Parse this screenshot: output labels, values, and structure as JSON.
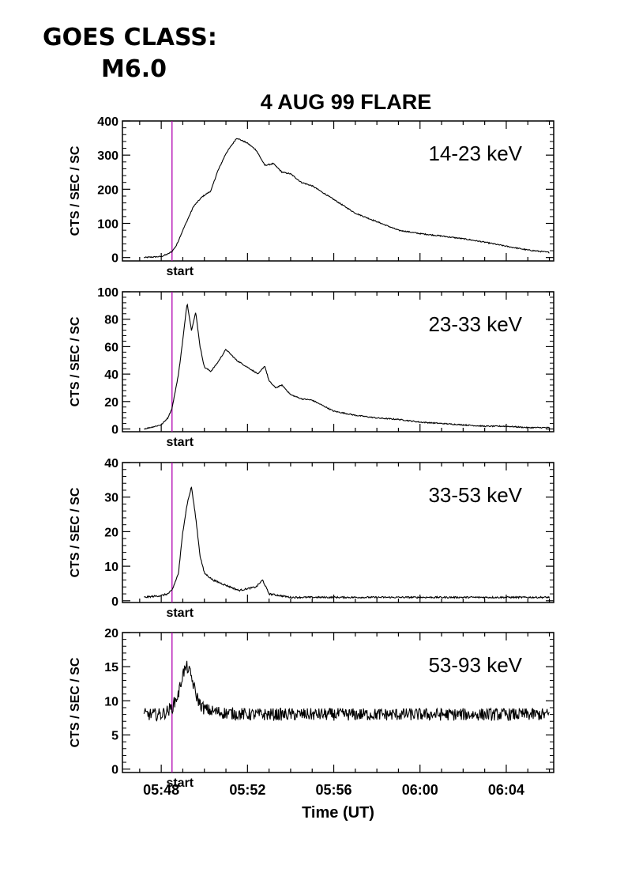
{
  "header": {
    "goes_class_label": "GOES CLASS:",
    "goes_class_value": "M6.0"
  },
  "chart_data": {
    "type": "line",
    "title": "4 AUG 99 FLARE",
    "xlabel": "Time (UT)",
    "ylabel": "CTS / SEC / SC",
    "x_unit": "minutes since 05:48 UT",
    "xlim": [
      -1.8,
      18.2
    ],
    "x_tick_labels": [
      "05:48",
      "05:52",
      "05:56",
      "06:00",
      "06:04"
    ],
    "x_tick_values": [
      0,
      4,
      8,
      12,
      16
    ],
    "marker": {
      "label": "start",
      "x": 0.5,
      "color": "#b000b0"
    },
    "line_color": "#000000",
    "grid": false,
    "panels": [
      {
        "band": "14-23 keV",
        "ylim": [
          -10,
          400
        ],
        "yticks": [
          0,
          100,
          200,
          300,
          400
        ],
        "x": [
          -0.8,
          0,
          0.3,
          0.5,
          0.7,
          1.0,
          1.5,
          1.9,
          2.3,
          2.6,
          3.0,
          3.5,
          4.0,
          4.4,
          4.8,
          5.2,
          5.6,
          6.0,
          6.5,
          7.0,
          7.5,
          8.0,
          8.5,
          9.0,
          10.0,
          11.0,
          12.0,
          13.0,
          14.0,
          15.0,
          16.0,
          17.0,
          18.0
        ],
        "values": [
          0,
          3,
          10,
          18,
          35,
          80,
          150,
          178,
          195,
          250,
          305,
          350,
          335,
          315,
          270,
          275,
          250,
          245,
          220,
          210,
          190,
          170,
          150,
          130,
          105,
          80,
          70,
          63,
          55,
          45,
          33,
          22,
          15
        ]
      },
      {
        "band": "23-33 keV",
        "ylim": [
          -2,
          100
        ],
        "yticks": [
          0,
          20,
          40,
          60,
          80,
          100
        ],
        "x": [
          -0.8,
          0,
          0.3,
          0.5,
          0.8,
          1.0,
          1.2,
          1.4,
          1.6,
          1.8,
          2.0,
          2.3,
          2.6,
          3.0,
          3.5,
          4.0,
          4.5,
          4.8,
          5.0,
          5.3,
          5.6,
          6.0,
          6.5,
          7.0,
          7.5,
          8.0,
          9.0,
          10.0,
          11.0,
          12.0,
          13.0,
          14.0,
          15.0,
          16.0,
          17.0,
          18.0
        ],
        "values": [
          0,
          3,
          8,
          15,
          40,
          65,
          92,
          72,
          85,
          60,
          45,
          42,
          48,
          58,
          50,
          45,
          40,
          46,
          35,
          30,
          32,
          25,
          22,
          21,
          17,
          13,
          10,
          8,
          7,
          5,
          4,
          3,
          2,
          2,
          1,
          1
        ]
      },
      {
        "band": "33-53 keV",
        "ylim": [
          -0.5,
          40
        ],
        "yticks": [
          0,
          10,
          20,
          30,
          40
        ],
        "x": [
          -0.8,
          0,
          0.3,
          0.5,
          0.8,
          1.0,
          1.2,
          1.4,
          1.6,
          1.8,
          2.0,
          2.4,
          2.8,
          3.2,
          3.6,
          4.0,
          4.4,
          4.7,
          5.0,
          5.5,
          6.0,
          7.0,
          8.0,
          9.0,
          10.0,
          11.0,
          12.0,
          13.0,
          14.0,
          15.0,
          16.0,
          17.0,
          18.0
        ],
        "values": [
          1,
          1.5,
          2,
          3,
          8,
          20,
          28,
          33,
          24,
          13,
          8,
          6,
          5,
          4,
          3,
          3.5,
          4,
          6,
          2,
          1.5,
          1,
          1,
          1,
          1,
          1,
          1,
          1,
          1,
          1,
          1,
          1,
          1,
          1
        ]
      },
      {
        "band": "53-93 keV",
        "ylim": [
          -0.5,
          20
        ],
        "yticks": [
          0,
          5,
          10,
          15,
          20
        ],
        "x": [
          -0.8,
          0,
          0.3,
          0.5,
          0.8,
          1.0,
          1.2,
          1.4,
          1.6,
          1.8,
          2.0,
          2.3,
          3.0,
          4.0,
          6.0,
          8.0,
          10.0,
          12.0,
          14.0,
          16.0,
          18.0
        ],
        "values": [
          8,
          8,
          8.5,
          9,
          11,
          14,
          15,
          13.5,
          11,
          9.5,
          8.8,
          8.5,
          8.2,
          8,
          8,
          8,
          8,
          8,
          8,
          8,
          8
        ]
      }
    ]
  }
}
